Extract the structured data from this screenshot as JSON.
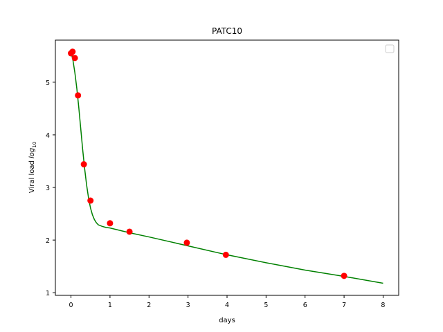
{
  "chart_data": {
    "type": "scatter",
    "title": "PATC10",
    "xlabel": "days",
    "ylabel_main": "Viral load ",
    "ylabel_italic": "log",
    "ylabel_sub": "10",
    "xlim": [
      -0.4,
      8.4
    ],
    "ylim": [
      0.95,
      5.8
    ],
    "xticks": [
      0,
      1,
      2,
      3,
      4,
      5,
      6,
      7,
      8
    ],
    "yticks": [
      1,
      2,
      3,
      4,
      5
    ],
    "grid": false,
    "legend": {
      "position": "top-right",
      "entries": []
    },
    "series": [
      {
        "kind": "points",
        "color": "#ff0000",
        "x": [
          0.0,
          0.04,
          0.1,
          0.18,
          0.33,
          0.5,
          1.0,
          1.5,
          2.97,
          3.97,
          7.0
        ],
        "y": [
          5.55,
          5.58,
          5.46,
          4.75,
          3.44,
          2.75,
          2.32,
          2.16,
          1.95,
          1.72,
          1.32
        ]
      },
      {
        "kind": "line",
        "color": "#008000",
        "x": [
          0.0,
          0.05,
          0.1,
          0.15,
          0.2,
          0.25,
          0.3,
          0.35,
          0.4,
          0.45,
          0.5,
          0.55,
          0.6,
          0.65,
          0.7,
          0.8,
          0.9,
          1.0,
          1.5,
          2.0,
          3.0,
          4.0,
          5.0,
          6.0,
          7.0,
          8.0
        ],
        "y": [
          5.58,
          5.42,
          5.18,
          4.88,
          4.52,
          4.12,
          3.72,
          3.36,
          3.05,
          2.8,
          2.61,
          2.48,
          2.39,
          2.33,
          2.29,
          2.26,
          2.24,
          2.23,
          2.14,
          2.06,
          1.89,
          1.72,
          1.57,
          1.43,
          1.31,
          1.18
        ]
      }
    ]
  }
}
